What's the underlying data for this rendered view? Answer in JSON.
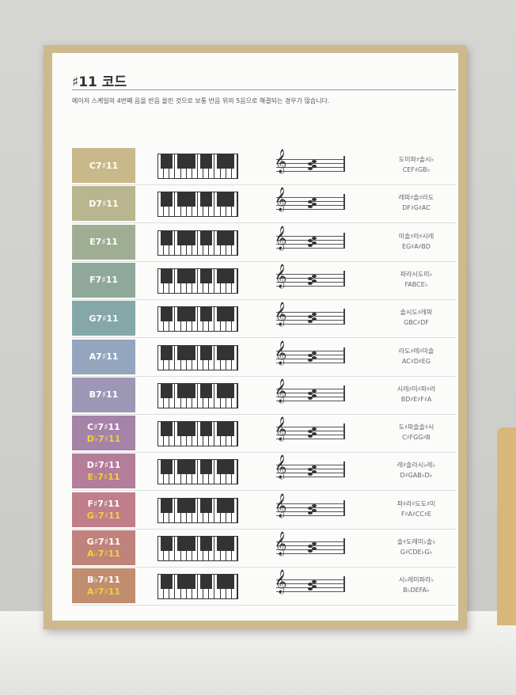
{
  "title": "♯11 코드",
  "subtitle": "메이저 스케일의 4번째 음을 반음 올린 것으로 보통 반음 위의 5음으로 해결되는 경우가 많습니다.",
  "rows": [
    {
      "chord": "C7♯11",
      "alt": "",
      "kor": "도미파♯솔시♭",
      "eng": "CEF♯GB♭",
      "color": "#c9b98a"
    },
    {
      "chord": "D7♯11",
      "alt": "",
      "kor": "레파♯솔♯라도",
      "eng": "DF♯G♯AC",
      "color": "#b9b58e"
    },
    {
      "chord": "E7♯11",
      "alt": "",
      "kor": "미솔♯라♯시레",
      "eng": "EG♯A♯BD",
      "color": "#9fae92"
    },
    {
      "chord": "F7♯11",
      "alt": "",
      "kor": "파라시도미♭",
      "eng": "FABCE♭",
      "color": "#8fa89a"
    },
    {
      "chord": "G7♯11",
      "alt": "",
      "kor": "솔시도♯레파",
      "eng": "GBC♯DF",
      "color": "#86a7a7"
    },
    {
      "chord": "A7♯11",
      "alt": "",
      "kor": "라도♯레♯미솔",
      "eng": "AC♯D♯EG",
      "color": "#93a6bd"
    },
    {
      "chord": "B7♯11",
      "alt": "",
      "kor": "시레♯미♯파♯라",
      "eng": "BD♯E♯F♯A",
      "color": "#9d97b5"
    },
    {
      "chord": "C♯7♯11",
      "alt": "D♭7♯11",
      "kor": "도♯파솔솔♯시",
      "eng": "C♯FGG♯B",
      "color": "#a582a8"
    },
    {
      "chord": "D♯7♯11",
      "alt": "E♭7♯11",
      "kor": "레♯솔라시♭레♭",
      "eng": "D♯GAB♭D♭",
      "color": "#b47d9a"
    },
    {
      "chord": "F♯7♯11",
      "alt": "G♭7♯11",
      "kor": "파♯라♯도도♯미",
      "eng": "F♯A♯CC♯E",
      "color": "#c07d8a"
    },
    {
      "chord": "G♯7♯11",
      "alt": "A♭7♯11",
      "kor": "솔♯도레미♭솔♭",
      "eng": "G♯CDE♭G♭",
      "color": "#c0837c"
    },
    {
      "chord": "B♭7♯11",
      "alt": "A♯7♯11",
      "kor": "시♭레미파라♭",
      "eng": "B♭DEFA♭",
      "color": "#c08d6e"
    }
  ]
}
